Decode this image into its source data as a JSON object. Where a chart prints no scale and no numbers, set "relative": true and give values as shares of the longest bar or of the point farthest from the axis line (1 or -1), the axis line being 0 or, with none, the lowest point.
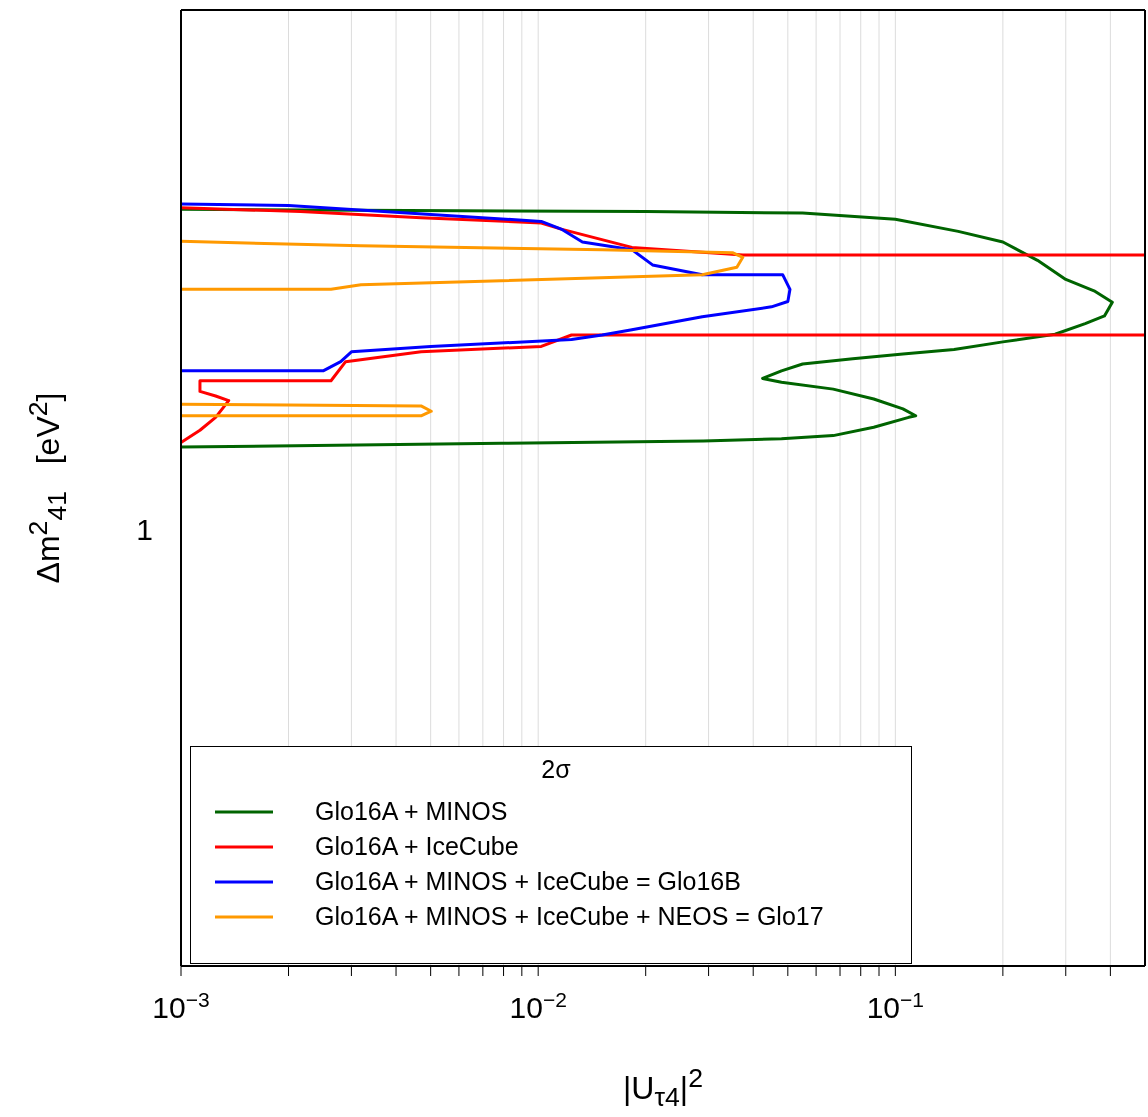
{
  "chart_data": {
    "type": "line",
    "relative": true,
    "xlabel": "|U$_{τ4}$|$^{2}$",
    "ylabel": "Δm$^{2}$$_{41}$   [eV$^{2}$]",
    "legend_title": "2σ",
    "legend": "bottom left",
    "grid": "x",
    "log": "x",
    "annotations": [
      "1"
    ],
    "xlim": [
      0.001,
      0.5
    ],
    "xticks": [
      {
        "value": 0.001,
        "label": "10$^{−3}$"
      },
      {
        "value": 0.002,
        "label": null
      },
      {
        "value": 0.003,
        "label": null
      },
      {
        "value": 0.004,
        "label": null
      },
      {
        "value": 0.005,
        "label": null
      },
      {
        "value": 0.006,
        "label": null
      },
      {
        "value": 0.007,
        "label": null
      },
      {
        "value": 0.008,
        "label": null
      },
      {
        "value": 0.009,
        "label": null
      },
      {
        "value": 0.01,
        "label": "10$^{−2}$"
      },
      {
        "value": 0.02,
        "label": null
      },
      {
        "value": 0.03,
        "label": null
      },
      {
        "value": 0.04,
        "label": null
      },
      {
        "value": 0.05,
        "label": null
      },
      {
        "value": 0.06,
        "label": null
      },
      {
        "value": 0.07,
        "label": null
      },
      {
        "value": 0.08,
        "label": null
      },
      {
        "value": 0.09,
        "label": null
      },
      {
        "value": 0.1,
        "label": "10$^{−1}$"
      },
      {
        "value": 0.2,
        "label": null
      },
      {
        "value": 0.3,
        "label": null
      },
      {
        "value": 0.4,
        "label": null
      }
    ],
    "series": [
      {
        "name": "Glo16A + MINOS",
        "color": "#006400",
        "x": [
          0.001,
          0.02,
          0.055,
          0.1,
          0.15,
          0.2,
          0.25,
          0.3,
          0.36,
          0.405,
          0.385,
          0.34,
          0.28,
          0.2,
          0.146,
          0.105,
          0.076,
          0.055,
          0.048,
          0.0425,
          0.048,
          0.067,
          0.087,
          0.105,
          0.114,
          0.109,
          0.087,
          0.067,
          0.048,
          0.029,
          0.0079,
          0.001
        ],
        "values": [
          0.993,
          0.99,
          0.988,
          0.98,
          0.964,
          0.95,
          0.926,
          0.901,
          0.886,
          0.871,
          0.853,
          0.843,
          0.829,
          0.819,
          0.809,
          0.803,
          0.797,
          0.79,
          0.781,
          0.771,
          0.766,
          0.757,
          0.744,
          0.731,
          0.722,
          0.72,
          0.707,
          0.696,
          0.692,
          0.689,
          0.686,
          0.681
        ]
      },
      {
        "name": "Glo16A + IceCube",
        "color": "#ff0000",
        "x": [
          0.001,
          0.00113,
          0.00125,
          0.00136,
          0.00125,
          0.00113,
          0.00113,
          0.00263,
          0.00289,
          0.0047,
          0.0102,
          0.0124,
          0.5,
          null,
          0.5,
          0.0374,
          0.0183,
          0.0116,
          0.0102,
          0.0047,
          0.00216,
          0.001
        ],
        "values": [
          0.687,
          0.703,
          0.72,
          0.742,
          0.748,
          0.754,
          0.768,
          0.768,
          0.793,
          0.806,
          0.813,
          0.828,
          0.828,
          null,
          0.933,
          0.933,
          0.943,
          0.967,
          0.975,
          0.982,
          0.99,
          0.995
        ]
      },
      {
        "name": "Glo16A + MINOS + IceCube = Glo16B",
        "color": "#0000ff",
        "x": [
          0.001,
          0.002,
          0.0102,
          0.0116,
          0.0133,
          0.0183,
          0.0209,
          0.0288,
          0.0484,
          0.0507,
          0.05,
          0.045,
          0.0288,
          0.0183,
          0.0151,
          0.0124,
          0.005,
          0.003,
          0.0028,
          0.0025,
          0.001
        ],
        "values": [
          1,
          0.998,
          0.977,
          0.967,
          0.95,
          0.94,
          0.92,
          0.907,
          0.907,
          0.888,
          0.872,
          0.865,
          0.852,
          0.835,
          0.828,
          0.822,
          0.813,
          0.806,
          0.793,
          0.781,
          0.781
        ]
      },
      {
        "name": "Glo16A + MINOS + IceCube + NEOS = Glo17",
        "color": "#ff9900",
        "x": [
          0.001,
          0.00319,
          0.0151,
          0.035,
          0.0374,
          0.036,
          0.0288,
          0.00319,
          0.00263,
          0.001,
          null,
          0.001,
          0.0047,
          0.00502,
          0.0047,
          0.00263,
          0.001
        ],
        "values": [
          0.951,
          0.945,
          0.94,
          0.936,
          0.93,
          0.917,
          0.907,
          0.894,
          0.888,
          0.888,
          null,
          0.737,
          0.735,
          0.728,
          0.722,
          0.722,
          0.722
        ]
      }
    ]
  }
}
